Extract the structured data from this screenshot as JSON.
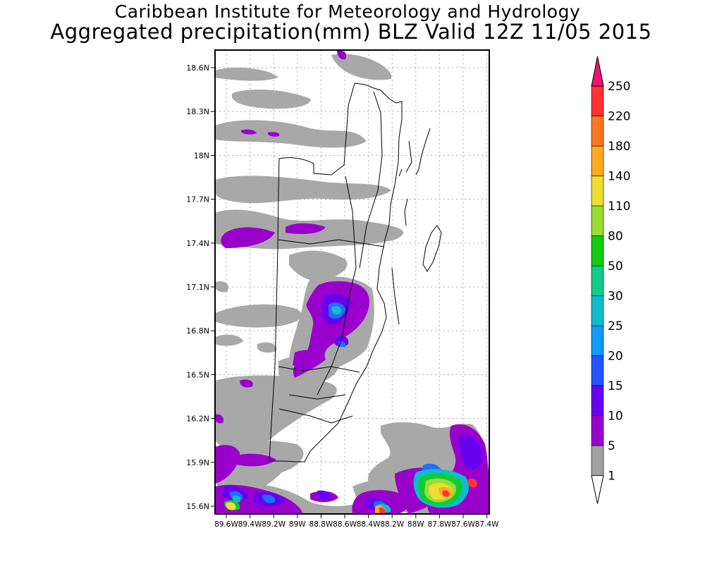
{
  "title": {
    "line1": "Caribbean Institute for Meteorology and Hydrology",
    "line2": "Aggregated precipitation(mm) BLZ Valid 12Z 11/05 2015"
  },
  "map": {
    "lat_labels": [
      "18.6N",
      "18.3N",
      "18N",
      "17.7N",
      "17.4N",
      "17.1N",
      "16.8N",
      "16.5N",
      "16.2N",
      "15.9N",
      "15.6N"
    ],
    "lon_labels": [
      "89.6W",
      "89.4W",
      "89.2W",
      "89W",
      "88.8W",
      "88.6W",
      "88.4W",
      "88.2W",
      "88W",
      "87.8W",
      "87.6W",
      "87.4W"
    ]
  },
  "legend": {
    "levels": [
      "1",
      "5",
      "10",
      "15",
      "20",
      "25",
      "30",
      "50",
      "80",
      "110",
      "140",
      "180",
      "220",
      "250"
    ],
    "colors": [
      "#ffffff",
      "#a0a0a0",
      "#9900cc",
      "#6600ee",
      "#2255ff",
      "#1199ff",
      "#11bbcc",
      "#11cc88",
      "#11cc11",
      "#99dd33",
      "#eedd33",
      "#ffaa22",
      "#ff7722",
      "#ff3333",
      "#ee1177"
    ]
  }
}
